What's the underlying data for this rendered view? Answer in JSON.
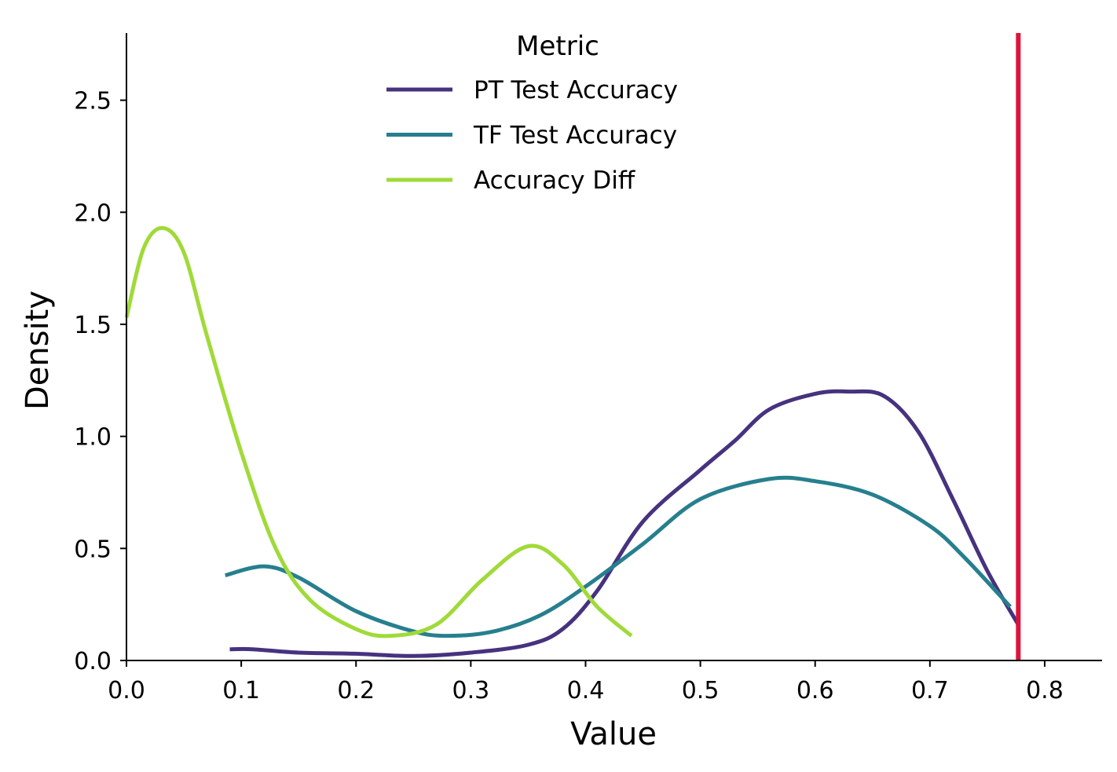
{
  "chart_data": {
    "type": "line",
    "title": "",
    "xlabel": "Value",
    "ylabel": "Density",
    "xlim": [
      0.0,
      0.85
    ],
    "ylim": [
      0.0,
      2.8
    ],
    "xticks": [
      0.0,
      0.1,
      0.2,
      0.3,
      0.4,
      0.5,
      0.6,
      0.7,
      0.8
    ],
    "xtick_labels": [
      "0.0",
      "0.1",
      "0.2",
      "0.3",
      "0.4",
      "0.5",
      "0.6",
      "0.7",
      "0.8"
    ],
    "yticks": [
      0.0,
      0.5,
      1.0,
      1.5,
      2.0,
      2.5
    ],
    "ytick_labels": [
      "0.0",
      "0.5",
      "1.0",
      "1.5",
      "2.0",
      "2.5"
    ],
    "grid": false,
    "legend": {
      "title": "Metric",
      "placement": "upper-center"
    },
    "series": [
      {
        "name": "PT Test Accuracy",
        "color": "#46327e",
        "points": [
          [
            0.09,
            0.05
          ],
          [
            0.11,
            0.05
          ],
          [
            0.15,
            0.035
          ],
          [
            0.2,
            0.03
          ],
          [
            0.25,
            0.02
          ],
          [
            0.3,
            0.035
          ],
          [
            0.35,
            0.07
          ],
          [
            0.38,
            0.14
          ],
          [
            0.41,
            0.31
          ],
          [
            0.45,
            0.62
          ],
          [
            0.5,
            0.85
          ],
          [
            0.53,
            0.98
          ],
          [
            0.56,
            1.12
          ],
          [
            0.6,
            1.19
          ],
          [
            0.63,
            1.2
          ],
          [
            0.66,
            1.18
          ],
          [
            0.69,
            1.02
          ],
          [
            0.72,
            0.72
          ],
          [
            0.75,
            0.4
          ],
          [
            0.777,
            0.16
          ]
        ]
      },
      {
        "name": "TF Test Accuracy",
        "color": "#277f8e",
        "points": [
          [
            0.086,
            0.38
          ],
          [
            0.12,
            0.42
          ],
          [
            0.15,
            0.37
          ],
          [
            0.2,
            0.22
          ],
          [
            0.25,
            0.13
          ],
          [
            0.28,
            0.11
          ],
          [
            0.32,
            0.13
          ],
          [
            0.36,
            0.2
          ],
          [
            0.4,
            0.33
          ],
          [
            0.45,
            0.52
          ],
          [
            0.5,
            0.72
          ],
          [
            0.56,
            0.81
          ],
          [
            0.6,
            0.8
          ],
          [
            0.65,
            0.74
          ],
          [
            0.7,
            0.6
          ],
          [
            0.73,
            0.46
          ],
          [
            0.77,
            0.24
          ]
        ]
      },
      {
        "name": "Accuracy Diff",
        "color": "#a0da39",
        "points": [
          [
            0.0,
            1.53
          ],
          [
            0.015,
            1.84
          ],
          [
            0.032,
            1.93
          ],
          [
            0.05,
            1.82
          ],
          [
            0.07,
            1.45
          ],
          [
            0.1,
            0.93
          ],
          [
            0.13,
            0.5
          ],
          [
            0.16,
            0.27
          ],
          [
            0.2,
            0.14
          ],
          [
            0.23,
            0.11
          ],
          [
            0.27,
            0.16
          ],
          [
            0.31,
            0.36
          ],
          [
            0.35,
            0.51
          ],
          [
            0.38,
            0.43
          ],
          [
            0.41,
            0.24
          ],
          [
            0.44,
            0.11
          ]
        ]
      }
    ],
    "reference_lines": [
      {
        "orientation": "vertical",
        "x": 0.777,
        "color": "#dc143c"
      }
    ]
  }
}
